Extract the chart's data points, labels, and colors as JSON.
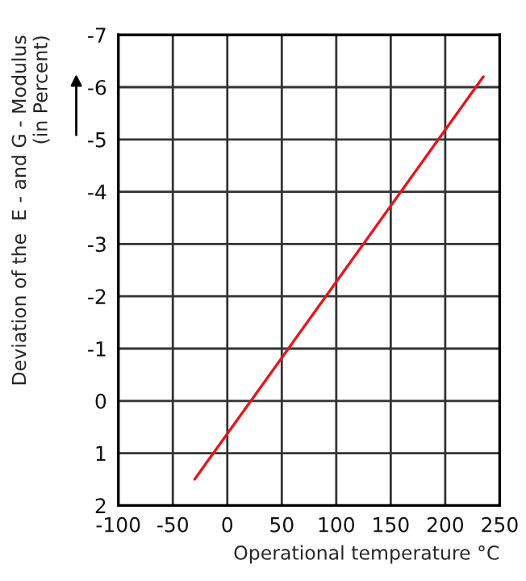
{
  "chart_data": {
    "type": "line",
    "xlabel": "Operational temperature °C",
    "ylabel": "Deviation of the  E - and G - Modulus\n(in Percent)",
    "series": [
      {
        "color": "#e8141c",
        "x": [
          -30,
          235
        ],
        "values": [
          1.5,
          -6.2
        ]
      }
    ],
    "xlim": [
      -100,
      250
    ],
    "xticks": [
      -100,
      -50,
      0,
      50,
      100,
      150,
      200,
      250
    ],
    "ylim": [
      2,
      -7
    ],
    "yticks": [
      2,
      1,
      0,
      -1,
      -2,
      -3,
      -4,
      -5,
      -6,
      -7
    ],
    "grid": true,
    "legend": false,
    "marker": "none",
    "line_style": "solid"
  }
}
